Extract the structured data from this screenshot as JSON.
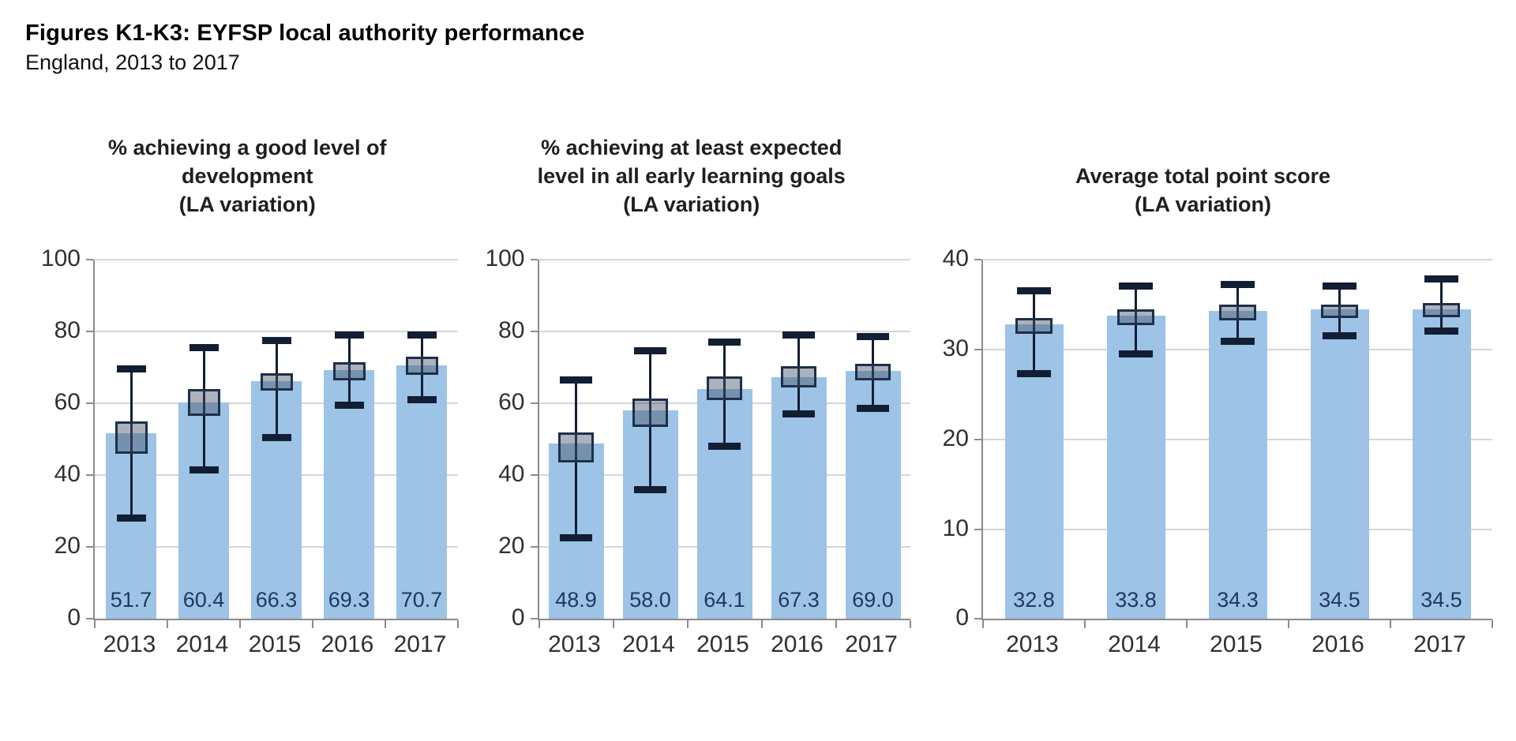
{
  "header": {
    "title": "Figures K1-K3: EYFSP local authority performance",
    "subtitle": "England, 2013 to 2017"
  },
  "colors": {
    "bar_fill": "#9DC3E6",
    "box_fill": "#44546A",
    "box_fill_opacity": 0.45,
    "box_border": "#1F2F49",
    "whisker": "#121E33",
    "gridline": "#D6D6D6",
    "axis_line": "#8C8C8C",
    "value_label": "#1F3864",
    "tick_label": "#303030",
    "chart_title": "#1F1F1F"
  },
  "chart_data": [
    {
      "type": "bar",
      "title": "% achieving a good level of development (LA variation)",
      "title_lines": [
        "% achieving a good level of",
        "development",
        "(LA variation)"
      ],
      "categories": [
        "2013",
        "2014",
        "2015",
        "2016",
        "2017"
      ],
      "values": [
        51.7,
        60.4,
        66.3,
        69.3,
        70.7
      ],
      "value_labels": [
        "51.7",
        "60.4",
        "66.3",
        "69.3",
        "70.7"
      ],
      "error_bars": {
        "low": [
          28,
          41.5,
          50.5,
          59.5,
          61
        ],
        "high": [
          69.5,
          75.5,
          77.5,
          79,
          79
        ]
      },
      "box": {
        "low": [
          46,
          56.5,
          63.5,
          66.5,
          68
        ],
        "high": [
          55,
          64,
          68.5,
          71.5,
          73
        ]
      },
      "xlabel": "",
      "ylabel": "",
      "ylim": [
        0,
        100
      ],
      "yticks": [
        0,
        20,
        40,
        60,
        80,
        100
      ],
      "grid": true,
      "legend_position": "none"
    },
    {
      "type": "bar",
      "title": "% achieving at least expected level in all early learning goals (LA variation)",
      "title_lines": [
        "% achieving at least expected",
        "level in all early learning goals",
        "(LA variation)"
      ],
      "categories": [
        "2013",
        "2014",
        "2015",
        "2016",
        "2017"
      ],
      "values": [
        48.9,
        58.0,
        64.1,
        67.3,
        69.0
      ],
      "value_labels": [
        "48.9",
        "58.0",
        "64.1",
        "67.3",
        "69.0"
      ],
      "error_bars": {
        "low": [
          22.5,
          36,
          48,
          57,
          58.5
        ],
        "high": [
          66.5,
          74.5,
          77,
          79,
          78.5
        ]
      },
      "box": {
        "low": [
          43.5,
          53.5,
          61,
          64.5,
          66.5
        ],
        "high": [
          52,
          61.5,
          67.5,
          70.5,
          71
        ]
      },
      "xlabel": "",
      "ylabel": "",
      "ylim": [
        0,
        100
      ],
      "yticks": [
        0,
        20,
        40,
        60,
        80,
        100
      ],
      "grid": true,
      "legend_position": "none"
    },
    {
      "type": "bar",
      "title": "Average total point score (LA variation)",
      "title_lines": [
        "Average total point score",
        "(LA variation)"
      ],
      "categories": [
        "2013",
        "2014",
        "2015",
        "2016",
        "2017"
      ],
      "values": [
        32.8,
        33.8,
        34.3,
        34.5,
        34.5
      ],
      "value_labels": [
        "32.8",
        "33.8",
        "34.3",
        "34.5",
        "34.5"
      ],
      "error_bars": {
        "low": [
          27.3,
          29.5,
          30.9,
          31.5,
          32
        ],
        "high": [
          36.5,
          37,
          37.2,
          37,
          37.8
        ]
      },
      "box": {
        "low": [
          31.8,
          32.7,
          33.3,
          33.5,
          33.6
        ],
        "high": [
          33.5,
          34.5,
          35,
          35,
          35.2
        ]
      },
      "xlabel": "",
      "ylabel": "",
      "ylim": [
        0,
        40
      ],
      "yticks": [
        0,
        10,
        20,
        30,
        40
      ],
      "grid": true,
      "legend_position": "none"
    }
  ]
}
